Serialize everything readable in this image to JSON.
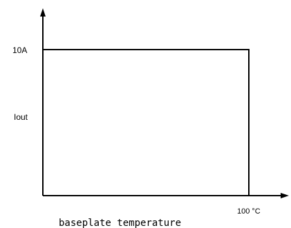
{
  "chart_data": {
    "type": "line",
    "title": "",
    "xlabel": "baseplate temperature",
    "ylabel": "Iout",
    "x_tick_label": "100 °C",
    "y_tick_label": "10A",
    "xlim": [
      0,
      100
    ],
    "ylim": [
      0,
      10
    ],
    "series": [
      {
        "x": [
          0,
          100,
          100
        ],
        "y": [
          10,
          10,
          0
        ],
        "color": "#000000"
      }
    ],
    "grid": false,
    "legend": "none"
  }
}
